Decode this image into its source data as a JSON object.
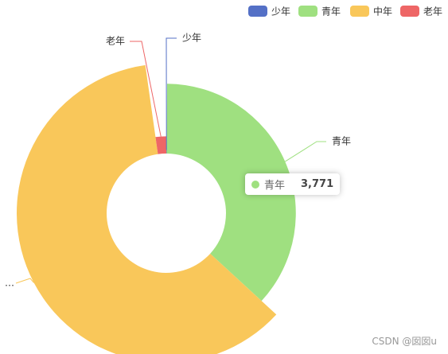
{
  "chart_data": {
    "type": "pie",
    "categories": [
      "少年",
      "青年",
      "中年",
      "老年"
    ],
    "values": [
      10,
      3771,
      6250,
      230
    ],
    "colors": [
      "#5470c6",
      "#9fe080",
      "#f9c75a",
      "#ee6666"
    ],
    "labels": [
      "少年",
      "青年",
      "…",
      "老年"
    ],
    "tooltip": {
      "name": "青年",
      "value": "3,771"
    },
    "watermark": "CSDN @囡囡u"
  }
}
